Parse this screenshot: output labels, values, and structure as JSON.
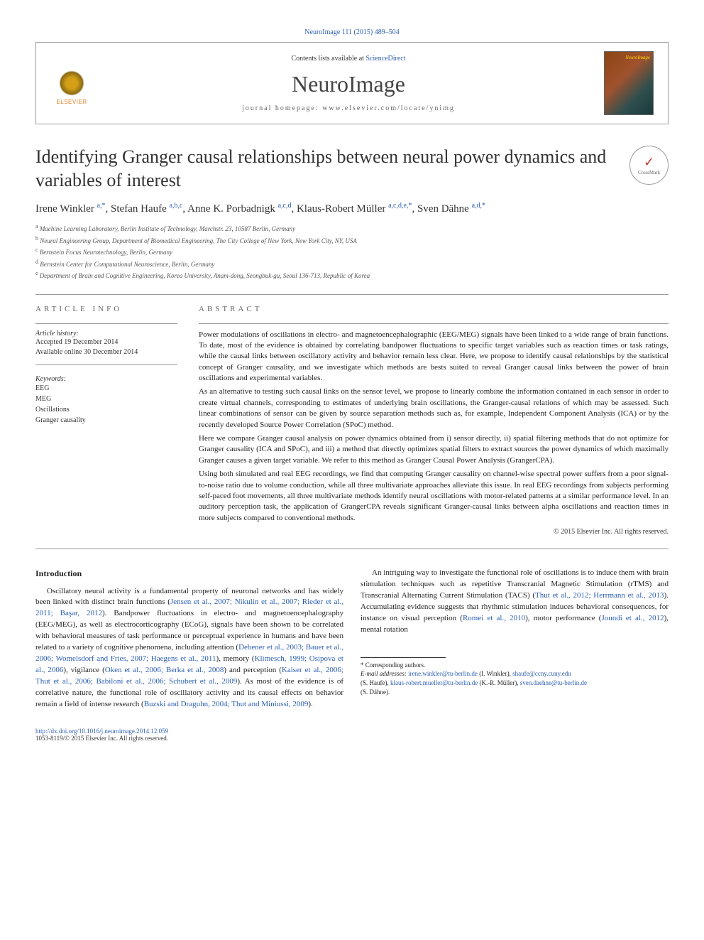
{
  "meta": {
    "top_link": "NeuroImage 111 (2015) 489–504",
    "contents_prefix": "Contents lists available at ",
    "contents_link": "ScienceDirect",
    "journal_name": "NeuroImage",
    "homepage_label": "journal homepage: www.elsevier.com/locate/ynimg",
    "elsevier_label": "ELSEVIER",
    "cover_label": "NeuroImage",
    "crossmark": "CrossMark"
  },
  "article": {
    "title": "Identifying Granger causal relationships between neural power dynamics and variables of interest",
    "authors_html": "Irene Winkler <sup>a,*</sup>, Stefan Haufe <sup>a,b,c</sup>, Anne K. Porbadnigk <sup>a,c,d</sup>, Klaus-Robert Müller <sup>a,c,d,e,*</sup>, Sven Dähne <sup>a,d,*</sup>"
  },
  "affiliations": [
    {
      "sup": "a",
      "text": "Machine Learning Laboratory, Berlin Institute of Technology, Marchstr. 23, 10587 Berlin, Germany"
    },
    {
      "sup": "b",
      "text": "Neural Engineering Group, Department of Biomedical Engineering, The City College of New York, New York City, NY, USA"
    },
    {
      "sup": "c",
      "text": "Bernstein Focus Neurotechnology, Berlin, Germany"
    },
    {
      "sup": "d",
      "text": "Bernstein Center for Computational Neuroscience, Berlin, Germany"
    },
    {
      "sup": "e",
      "text": "Department of Brain and Cognitive Engineering, Korea University, Anam-dong, Seongbuk-gu, Seoul 136-713, Republic of Korea"
    }
  ],
  "info": {
    "info_heading": "ARTICLE INFO",
    "history_label": "Article history:",
    "accepted": "Accepted 19 December 2014",
    "online": "Available online 30 December 2014",
    "keywords_label": "Keywords:",
    "keywords": [
      "EEG",
      "MEG",
      "Oscillations",
      "Granger causality"
    ]
  },
  "abstract": {
    "heading": "ABSTRACT",
    "paragraphs": [
      "Power modulations of oscillations in electro- and magnetoencephalographic (EEG/MEG) signals have been linked to a wide range of brain functions. To date, most of the evidence is obtained by correlating bandpower fluctuations to specific target variables such as reaction times or task ratings, while the causal links between oscillatory activity and behavior remain less clear. Here, we propose to identify causal relationships by the statistical concept of Granger causality, and we investigate which methods are bests suited to reveal Granger causal links between the power of brain oscillations and experimental variables.",
      "As an alternative to testing such causal links on the sensor level, we propose to linearly combine the information contained in each sensor in order to create virtual channels, corresponding to estimates of underlying brain oscillations, the Granger-causal relations of which may be assessed. Such linear combinations of sensor can be given by source separation methods such as, for example, Independent Component Analysis (ICA) or by the recently developed Source Power Correlation (SPoC) method.",
      "Here we compare Granger causal analysis on power dynamics obtained from i) sensor directly, ii) spatial filtering methods that do not optimize for Granger causality (ICA and SPoC), and iii) a method that directly optimizes spatial filters to extract sources the power dynamics of which maximally Granger causes a given target variable. We refer to this method as Granger Causal Power Analysis (GrangerCPA).",
      "Using both simulated and real EEG recordings, we find that computing Granger causality on channel-wise spectral power suffers from a poor signal-to-noise ratio due to volume conduction, while all three multivariate approaches alleviate this issue. In real EEG recordings from subjects performing self-paced foot movements, all three multivariate methods identify neural oscillations with motor-related patterns at a similar performance level. In an auditory perception task, the application of GrangerCPA reveals significant Granger-causal links between alpha oscillations and reaction times in more subjects compared to conventional methods."
    ],
    "copyright": "© 2015 Elsevier Inc. All rights reserved."
  },
  "body": {
    "intro_heading": "Introduction",
    "p1_pre": "Oscillatory neural activity is a fundamental property of neuronal networks and has widely been linked with distinct brain functions (",
    "p1_ref1": "Jensen et al., 2007; Nikulin et al., 2007; Rieder et al., 2011; Başar, 2012",
    "p1_post": "). Bandpower fluctuations in electro- and magnetoencephalography (EEG/MEG), as well as electrocorticography (ECoG), signals have been shown to be correlated with behavioral measures of task performance or perceptual experience in humans and have been related to a variety",
    "p2_pre": "of cognitive phenomena, including attention (",
    "p2_ref1": "Debener et al., 2003; Bauer et al., 2006; Womelsdorf and Fries, 2007; Haegens et al., 2011",
    "p2_mid1": "), memory (",
    "p2_ref2": "Klimesch, 1999; Osipova et al., 2006",
    "p2_mid2": "), vigilance (",
    "p2_ref3": "Oken et al., 2006; Berka et al., 2008",
    "p2_mid3": ") and perception (",
    "p2_ref4": "Kaiser et al., 2006; Thut et al., 2006; Babiloni et al., 2006; Schubert et al., 2009",
    "p2_mid4": "). As most of the evidence is of correlative nature, the functional role of oscillatory activity and its causal effects on behavior remain a field of intense research (",
    "p2_ref5": "Buzski and Draguhn, 2004; Thut and Miniussi, 2009",
    "p2_end": ").",
    "p3_pre": "An intriguing way to investigate the functional role of oscillations is to induce them with brain stimulation techniques such as repetitive Transcranial Magnetic Stimulation (rTMS) and Transcranial Alternating Current Stimulation (TACS) (",
    "p3_ref1": "Thut et al., 2012; Herrmann et al., 2013",
    "p3_mid1": "). Accumulating evidence suggests that rhythmic stimulation induces behavioral consequences, for instance on visual perception (",
    "p3_ref2": "Romei et al., 2010",
    "p3_mid2": "), motor performance (",
    "p3_ref3": "Joundi et al., 2012",
    "p3_end": "), mental rotation"
  },
  "footnotes": {
    "corr_label": "* Corresponding authors.",
    "email_label": "E-mail addresses: ",
    "e1": "irene.winkler@tu-berlin.de",
    "n1": " (I. Winkler), ",
    "e2": "shaufe@ccny.cuny.edu",
    "n2": " (S. Haufe), ",
    "e3": "klaus-robert.mueller@tu-berlin.de",
    "n3": " (K.-R. Müller), ",
    "e4": "sven.daehne@tu-berlin.de",
    "n4": " (S. Dähne)."
  },
  "footer": {
    "doi": "http://dx.doi.org/10.1016/j.neuroimage.2014.12.059",
    "issn": "1053-8119/© 2015 Elsevier Inc. All rights reserved."
  },
  "colors": {
    "link": "#2a5db0",
    "text": "#222222",
    "muted": "#666666",
    "border": "#999999"
  }
}
